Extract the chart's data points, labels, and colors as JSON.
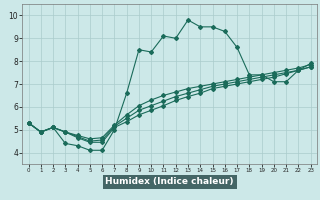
{
  "xlabel": "Humidex (Indice chaleur)",
  "bg_color": "#cce8e8",
  "grid_color": "#aacccc",
  "line_color": "#1a6b5a",
  "xlim": [
    -0.5,
    23.5
  ],
  "ylim": [
    3.5,
    10.5
  ],
  "xticks": [
    0,
    1,
    2,
    3,
    4,
    5,
    6,
    7,
    8,
    9,
    10,
    11,
    12,
    13,
    14,
    15,
    16,
    17,
    18,
    19,
    20,
    21,
    22,
    23
  ],
  "yticks": [
    4,
    5,
    6,
    7,
    8,
    9,
    10
  ],
  "xlabel_bg": "#446666",
  "xlabel_color": "#ffffff",
  "line1_x": [
    0,
    1,
    2,
    3,
    4,
    5,
    6,
    7,
    8,
    9,
    10,
    11,
    12,
    13,
    14,
    15,
    16,
    17,
    18,
    19,
    20,
    21,
    22,
    23
  ],
  "line1_y": [
    5.3,
    4.9,
    5.1,
    4.4,
    4.3,
    4.1,
    4.1,
    5.0,
    6.6,
    8.5,
    8.4,
    9.1,
    9.0,
    9.8,
    9.5,
    9.5,
    9.3,
    8.6,
    7.4,
    7.4,
    7.1,
    7.1,
    7.6,
    7.9
  ],
  "line2_x": [
    0,
    1,
    2,
    3,
    4,
    5,
    6,
    7,
    8,
    9,
    10,
    11,
    12,
    13,
    14,
    15,
    16,
    17,
    18,
    19,
    20,
    21,
    22,
    23
  ],
  "line2_y": [
    5.3,
    4.9,
    5.1,
    4.9,
    4.75,
    4.6,
    4.65,
    5.2,
    5.65,
    6.05,
    6.3,
    6.5,
    6.65,
    6.8,
    6.9,
    7.0,
    7.1,
    7.2,
    7.3,
    7.4,
    7.5,
    7.6,
    7.7,
    7.85
  ],
  "line3_x": [
    0,
    1,
    2,
    3,
    4,
    5,
    6,
    7,
    8,
    9,
    10,
    11,
    12,
    13,
    14,
    15,
    16,
    17,
    18,
    19,
    20,
    21,
    22,
    23
  ],
  "line3_y": [
    5.3,
    4.9,
    5.1,
    4.9,
    4.7,
    4.5,
    4.55,
    5.15,
    5.5,
    5.85,
    6.05,
    6.25,
    6.45,
    6.6,
    6.75,
    6.9,
    7.0,
    7.1,
    7.2,
    7.3,
    7.4,
    7.5,
    7.6,
    7.75
  ],
  "line4_x": [
    0,
    1,
    2,
    3,
    4,
    5,
    6,
    7,
    8,
    9,
    10,
    11,
    12,
    13,
    14,
    15,
    16,
    17,
    18,
    19,
    20,
    21,
    22,
    23
  ],
  "line4_y": [
    5.3,
    4.9,
    5.1,
    4.9,
    4.65,
    4.45,
    4.45,
    5.1,
    5.35,
    5.65,
    5.85,
    6.05,
    6.28,
    6.45,
    6.6,
    6.8,
    6.9,
    7.0,
    7.1,
    7.2,
    7.3,
    7.45,
    7.6,
    7.75
  ]
}
